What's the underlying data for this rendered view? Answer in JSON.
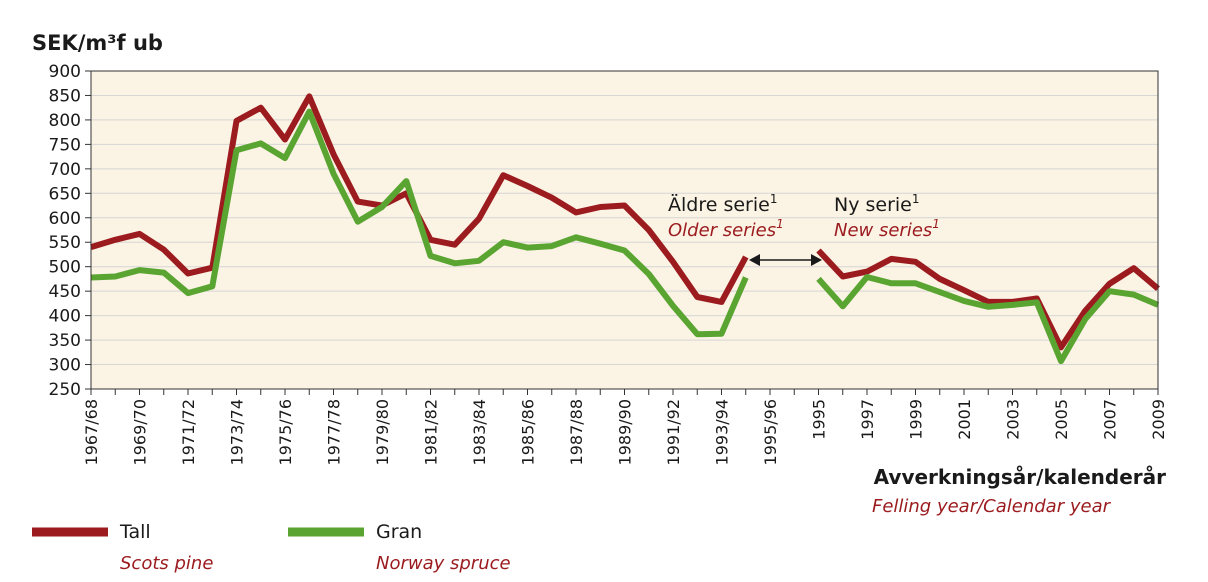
{
  "colors": {
    "tall": "#9b1b1f",
    "gran": "#5aa532",
    "red_text": "#9b1b1f",
    "grid": "#d6d6d6",
    "plot_bg": "#fbf3e4"
  },
  "chart_data": {
    "type": "line",
    "ylabel": "SEK/m³f ub",
    "ylim": [
      250,
      900
    ],
    "yticks": [
      900,
      850,
      800,
      750,
      700,
      650,
      600,
      550,
      500,
      450,
      400,
      350,
      300,
      250
    ],
    "grid": true,
    "x": [
      "1967/68",
      "1968/69",
      "1969/70",
      "1970/71",
      "1971/72",
      "1972/73",
      "1973/74",
      "1974/75",
      "1975/76",
      "1976/77",
      "1977/78",
      "1978/79",
      "1979/80",
      "1980/81",
      "1981/82",
      "1982/83",
      "1983/84",
      "1984/85",
      "1985/86",
      "1986/87",
      "1987/88",
      "1988/89",
      "1989/90",
      "1990/91",
      "1991/92",
      "1992/93",
      "1993/94",
      "1994/95",
      "1995/96",
      "1995a",
      "1995",
      "1996",
      "1997",
      "1998",
      "1999",
      "2000",
      "2001",
      "2002",
      "2003",
      "2004",
      "2005",
      "2006",
      "2007",
      "2008",
      "2009"
    ],
    "xtick_labels": [
      "1967/68",
      "",
      "1969/70",
      "",
      "1971/72",
      "",
      "1973/74",
      "",
      "1975/76",
      "",
      "1977/78",
      "",
      "1979/80",
      "",
      "1981/82",
      "",
      "1983/84",
      "",
      "1985/86",
      "",
      "1987/88",
      "",
      "1989/90",
      "",
      "1991/92",
      "",
      "1993/94",
      "",
      "1995/96",
      "",
      "1995",
      "",
      "1997",
      "",
      "1999",
      "",
      "2001",
      "",
      "2003",
      "",
      "2005",
      "",
      "2007",
      "",
      "2009"
    ],
    "xlabel": "Avverkningsår/kalenderår",
    "xlabel_en": "Felling year/Calendar year",
    "series": [
      {
        "name": "Tall",
        "name_en": "Scots pine",
        "color": "#9b1b1f",
        "segments": [
          {
            "start": 0,
            "values": [
              540,
              555,
              567,
              535,
              486,
              498,
              798,
              825,
              760,
              848,
              730,
              633,
              625,
              650,
              555,
              545,
              598,
              687,
              665,
              641,
              611,
              622,
              625,
              575,
              510,
              438,
              428,
              520
            ]
          },
          {
            "start": 30,
            "values": [
              533,
              480,
              490,
              516,
              510,
              475,
              452,
              428,
              428,
              435,
              335,
              410,
              465,
              497,
              455
            ]
          }
        ]
      },
      {
        "name": "Gran",
        "name_en": "Norway spruce",
        "color": "#5aa532",
        "segments": [
          {
            "start": 0,
            "values": [
              478,
              480,
              493,
              488,
              446,
              460,
              738,
              752,
              722,
              817,
              690,
              592,
              622,
              675,
              522,
              507,
              512,
              550,
              539,
              542,
              560,
              547,
              533,
              485,
              420,
              362,
              363,
              478
            ]
          },
          {
            "start": 30,
            "values": [
              475,
              419,
              479,
              466,
              466,
              448,
              430,
              418,
              422,
              427,
              307,
              393,
              450,
              443,
              422
            ]
          }
        ]
      }
    ],
    "annotations": {
      "old_series": "Äldre serie",
      "old_series_en": "Older series",
      "new_series": "Ny serie",
      "new_series_en": "New series",
      "footnote_mark": "1"
    },
    "legend_position": "bottom-left"
  }
}
